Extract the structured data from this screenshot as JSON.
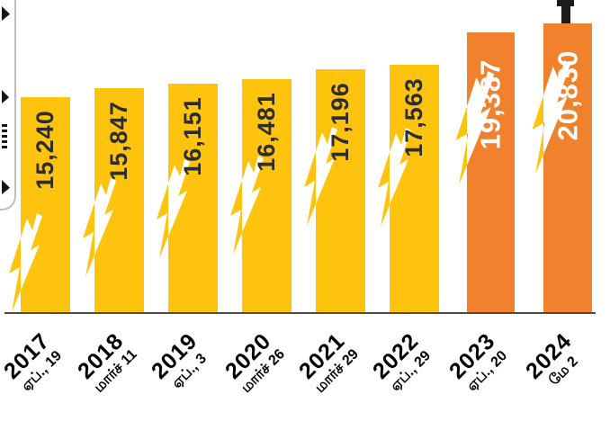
{
  "page": {
    "background": "#ffffff"
  },
  "chart_data": {
    "type": "bar",
    "title": "",
    "xlabel": "",
    "ylabel": "",
    "grid": false,
    "legend": null,
    "categories": [
      "2017",
      "2018",
      "2019",
      "2020",
      "2021",
      "2022",
      "2023",
      "2024"
    ],
    "category_sublabels": [
      "ஏப்., 19",
      "மார்ச் 11",
      "ஏப்., 3",
      "மார்ச் 26",
      "மார்ச் 29",
      "ஏப்., 29",
      "ஏப்., 20",
      "மே 2"
    ],
    "values": [
      15240,
      15847,
      16151,
      16481,
      17196,
      17563,
      19387,
      20830
    ],
    "value_labels": [
      "15,240",
      "15,847",
      "16,151",
      "16,481",
      "17,196",
      "17,563",
      "19,387",
      "20,830"
    ],
    "bar_colors": [
      "#FDC30D",
      "#FDC30D",
      "#FDC30D",
      "#FDC30D",
      "#FDC30D",
      "#FDC30D",
      "#F0812D",
      "#F0812D"
    ],
    "value_label_colors": [
      "#2d2d2d",
      "#2d2d2d",
      "#2d2d2d",
      "#2d2d2d",
      "#2d2d2d",
      "#2d2d2d",
      "#ffffff",
      "#ffffff"
    ],
    "highlight_note": "2023 and 2024 bars are orange-highlighted; each bar carries a lightning-bolt icon",
    "bolt_color_over_bar": "#ffffff",
    "bolt_color_over_background": "#FDC30D",
    "axis_color": "#4a4a4a"
  }
}
